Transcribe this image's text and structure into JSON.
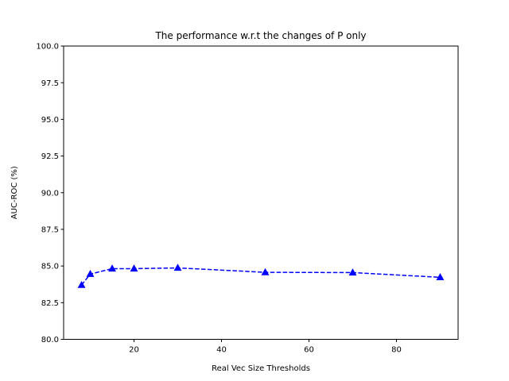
{
  "chart_data": {
    "type": "line",
    "title": "The performance w.r.t the changes of P only",
    "xlabel": "Real Vec Size Thresholds",
    "ylabel": "AUC-ROC (%)",
    "xlim": [
      3.9,
      94.1
    ],
    "ylim": [
      80.0,
      100.0
    ],
    "xticks": [
      20,
      40,
      60,
      80
    ],
    "xtick_labels": [
      "20",
      "40",
      "60",
      "80"
    ],
    "yticks": [
      80.0,
      82.5,
      85.0,
      87.5,
      90.0,
      92.5,
      95.0,
      97.5,
      100.0
    ],
    "ytick_labels": [
      "80.0",
      "82.5",
      "85.0",
      "87.5",
      "90.0",
      "92.5",
      "95.0",
      "97.5",
      "100.0"
    ],
    "grid": false,
    "series": [
      {
        "color": "#0000ff",
        "line_style": "dashed",
        "marker": "triangle-up",
        "x": [
          8,
          10,
          15,
          20,
          30,
          50,
          70,
          90
        ],
        "y": [
          83.7,
          84.45,
          84.82,
          84.82,
          84.87,
          84.57,
          84.55,
          84.23
        ]
      }
    ]
  }
}
